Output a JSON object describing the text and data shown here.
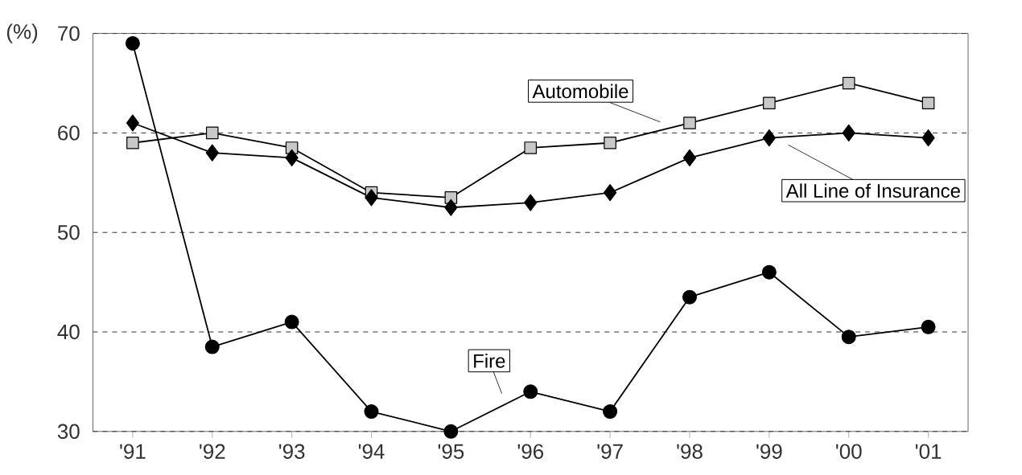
{
  "chart_data": {
    "type": "line",
    "ylabel": "(%)",
    "categories": [
      "'91",
      "'92",
      "'93",
      "'94",
      "'95",
      "'96",
      "'97",
      "'98",
      "'99",
      "'00",
      "'01"
    ],
    "series": [
      {
        "name": "Fire",
        "color": "#000000",
        "marker": "circle",
        "values": [
          69.0,
          38.5,
          41.0,
          32.0,
          30.0,
          34.0,
          32.0,
          43.5,
          46.0,
          39.5,
          40.5
        ]
      },
      {
        "name": "Automobile",
        "color": "#c8c8c8",
        "marker": "square",
        "values": [
          59.0,
          60.0,
          58.5,
          54.0,
          53.5,
          58.5,
          59.0,
          61.0,
          63.0,
          65.0,
          63.0
        ]
      },
      {
        "name": "All Line of Insurance",
        "color": "#000000",
        "marker": "diamond",
        "values": [
          61.0,
          58.0,
          57.5,
          53.5,
          52.5,
          53.0,
          54.0,
          57.5,
          59.5,
          60.0,
          59.5
        ]
      }
    ],
    "ylim": [
      30,
      70
    ],
    "yticks": [
      30,
      40,
      50,
      60,
      70
    ],
    "grid": "y",
    "line_style": "solid"
  }
}
